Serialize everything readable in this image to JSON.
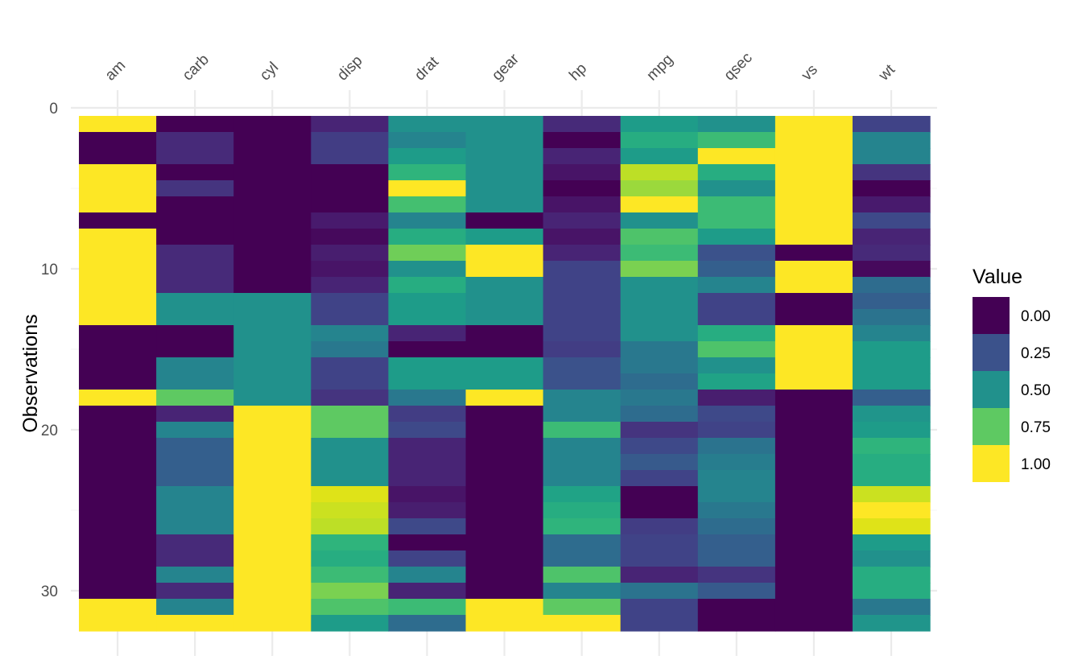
{
  "chart_data": {
    "type": "heatmap",
    "title": "",
    "xlabel": "",
    "ylabel": "Observations",
    "x_position": "top",
    "categories": [
      "am",
      "carb",
      "cyl",
      "disp",
      "drat",
      "gear",
      "hp",
      "mpg",
      "qsec",
      "vs",
      "wt"
    ],
    "y_range": [
      0.5,
      32.5
    ],
    "y_reverse": true,
    "y_ticks": [
      0,
      10,
      20,
      30
    ],
    "colorscale": "viridis",
    "legend": {
      "title": "Value",
      "position": "right",
      "breaks": [
        0.0,
        0.25,
        0.5,
        0.75,
        1.0
      ],
      "labels": [
        "0.00",
        "0.25",
        "0.50",
        "0.75",
        "1.00"
      ]
    },
    "rows": 32,
    "values": [
      [
        1,
        0,
        0,
        0.1,
        0.5,
        0.5,
        0.12,
        0.55,
        0.5,
        1,
        0.2
      ],
      [
        0,
        0.12,
        0,
        0.18,
        0.45,
        0.5,
        0,
        0.62,
        0.68,
        1,
        0.45
      ],
      [
        0,
        0.12,
        0,
        0.18,
        0.55,
        0.5,
        0.1,
        0.55,
        1,
        1,
        0.45
      ],
      [
        1,
        0,
        0,
        0,
        0.65,
        0.5,
        0.05,
        0.9,
        0.62,
        1,
        0.15
      ],
      [
        1,
        0.15,
        0,
        0,
        1,
        0.5,
        0,
        0.85,
        0.5,
        1,
        0
      ],
      [
        1,
        0,
        0,
        0,
        0.7,
        0.5,
        0.05,
        1,
        0.68,
        1,
        0.07
      ],
      [
        0,
        0,
        0,
        0.07,
        0.45,
        0,
        0.1,
        0.5,
        0.68,
        1,
        0.22
      ],
      [
        1,
        0,
        0,
        0.02,
        0.62,
        0.55,
        0.05,
        0.72,
        0.55,
        1,
        0.1
      ],
      [
        1,
        0.12,
        0,
        0.08,
        0.78,
        1,
        0.1,
        0.68,
        0.25,
        0,
        0.12
      ],
      [
        1,
        0.12,
        0,
        0.05,
        0.5,
        1,
        0.2,
        0.8,
        0.3,
        1,
        0.02
      ],
      [
        1,
        0.12,
        0,
        0.1,
        0.62,
        0.5,
        0.2,
        0.5,
        0.45,
        1,
        0.35
      ],
      [
        1,
        0.5,
        0.5,
        0.2,
        0.55,
        0.5,
        0.2,
        0.5,
        0.2,
        0,
        0.3
      ],
      [
        1,
        0.5,
        0.5,
        0.2,
        0.55,
        0.5,
        0.2,
        0.5,
        0.2,
        0,
        0.38
      ],
      [
        0,
        0,
        0.5,
        0.45,
        0.1,
        0,
        0.2,
        0.5,
        0.62,
        1,
        0.45
      ],
      [
        0,
        0,
        0.5,
        0.4,
        0,
        0,
        0.18,
        0.4,
        0.72,
        1,
        0.55
      ],
      [
        0,
        0.45,
        0.5,
        0.2,
        0.55,
        0.55,
        0.25,
        0.4,
        0.5,
        1,
        0.55
      ],
      [
        0,
        0.45,
        0.5,
        0.2,
        0.55,
        0.55,
        0.25,
        0.35,
        0.58,
        1,
        0.55
      ],
      [
        1,
        0.75,
        0.5,
        0.15,
        0.4,
        1,
        0.45,
        0.4,
        0.08,
        0,
        0.3
      ],
      [
        0,
        0.1,
        1,
        0.75,
        0.18,
        0,
        0.45,
        0.35,
        0.22,
        0,
        0.52
      ],
      [
        0,
        0.45,
        1,
        0.75,
        0.22,
        0,
        0.68,
        0.15,
        0.2,
        0,
        0.55
      ],
      [
        0,
        0.3,
        1,
        0.5,
        0.1,
        0,
        0.45,
        0.22,
        0.38,
        0,
        0.65
      ],
      [
        0,
        0.3,
        1,
        0.5,
        0.1,
        0,
        0.45,
        0.28,
        0.42,
        0,
        0.62
      ],
      [
        0,
        0.3,
        1,
        0.5,
        0.1,
        0,
        0.45,
        0.2,
        0.45,
        0,
        0.62
      ],
      [
        0,
        0.45,
        1,
        0.95,
        0.05,
        0,
        0.58,
        0,
        0.45,
        0,
        0.92
      ],
      [
        0,
        0.45,
        1,
        0.92,
        0.08,
        0,
        0.62,
        0,
        0.4,
        0,
        1
      ],
      [
        0,
        0.45,
        1,
        0.9,
        0.22,
        0,
        0.65,
        0.18,
        0.35,
        0,
        0.95
      ],
      [
        0,
        0.12,
        1,
        0.65,
        0,
        0,
        0.35,
        0.2,
        0.3,
        0,
        0.55
      ],
      [
        0,
        0.12,
        1,
        0.62,
        0.2,
        0,
        0.35,
        0.2,
        0.3,
        0,
        0.5
      ],
      [
        0,
        0.45,
        1,
        0.68,
        0.45,
        0,
        0.72,
        0.1,
        0.15,
        0,
        0.62
      ],
      [
        0,
        0.12,
        1,
        0.8,
        0.1,
        0,
        0.45,
        0.38,
        0.28,
        0,
        0.62
      ],
      [
        1,
        0.45,
        1,
        0.72,
        0.68,
        1,
        0.75,
        0.2,
        0,
        0,
        0.4
      ],
      [
        1,
        1,
        1,
        0.55,
        0.35,
        1,
        1,
        0.2,
        0,
        0,
        0.52
      ]
    ]
  }
}
